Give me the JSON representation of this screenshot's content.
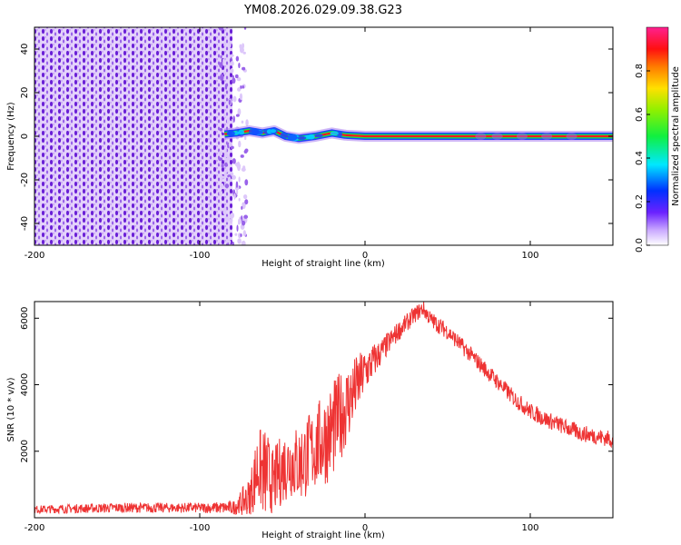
{
  "title": "YM08.2026.029.09.38.G23",
  "chart_data": [
    {
      "type": "heatmap",
      "xlabel": "Height of straight line (km)",
      "ylabel": "Frequency (Hz)",
      "xlim": [
        -200,
        150
      ],
      "ylim": [
        -50,
        50
      ],
      "xticks": [
        -200,
        -100,
        0,
        100
      ],
      "yticks": [
        -40,
        -20,
        0,
        20,
        40
      ],
      "colorbar": {
        "label": "Normalized spectral amplitude",
        "range": [
          0,
          1
        ],
        "ticks": [
          0.0,
          0.2,
          0.4,
          0.6,
          0.8
        ]
      },
      "regions": [
        {
          "description": "broadband noise",
          "x_range": [
            -200,
            -75
          ],
          "freq_range": [
            -50,
            50
          ],
          "amplitude": 0.05
        },
        {
          "description": "signal line",
          "x_range": [
            -85,
            150
          ],
          "freq": 0,
          "amplitude": 1.0
        }
      ],
      "line_track": [
        {
          "x": -85,
          "freq": 1.0
        },
        {
          "x": -78,
          "freq": 1.5
        },
        {
          "x": -70,
          "freq": 2.5
        },
        {
          "x": -62,
          "freq": 1.5
        },
        {
          "x": -55,
          "freq": 2.5
        },
        {
          "x": -48,
          "freq": 0.0
        },
        {
          "x": -40,
          "freq": -1.0
        },
        {
          "x": -30,
          "freq": 0.0
        },
        {
          "x": -20,
          "freq": 1.5
        },
        {
          "x": -12,
          "freq": 0.5
        },
        {
          "x": 0,
          "freq": 0.0
        },
        {
          "x": 150,
          "freq": 0.0
        }
      ]
    },
    {
      "type": "line",
      "xlabel": "Height of straight line (km)",
      "ylabel": "SNR (10 * v/v)",
      "xlim": [
        -200,
        150
      ],
      "ylim": [
        0,
        6500
      ],
      "xticks": [
        -200,
        -100,
        0,
        100
      ],
      "yticks": [
        2000,
        4000,
        6000
      ],
      "series": [
        {
          "name": "SNR",
          "color": "#ee3333",
          "x": [
            -200,
            -150,
            -100,
            -80,
            -70,
            -65,
            -60,
            -55,
            -50,
            -45,
            -40,
            -30,
            -20,
            -10,
            0,
            10,
            20,
            30,
            35,
            40,
            50,
            60,
            70,
            80,
            90,
            100,
            110,
            120,
            130,
            140,
            150
          ],
          "y": [
            250,
            300,
            300,
            300,
            600,
            1500,
            1300,
            1100,
            1500,
            1700,
            1600,
            2100,
            2600,
            3500,
            4400,
            5000,
            5600,
            6100,
            6300,
            5950,
            5600,
            5100,
            4600,
            4100,
            3600,
            3200,
            2950,
            2750,
            2550,
            2450,
            2350
          ],
          "noise_amplitude": [
            120,
            150,
            150,
            200,
            600,
            1200,
            1400,
            1000,
            1100,
            1100,
            1200,
            1300,
            1500,
            1200,
            700,
            400,
            300,
            250,
            250,
            250,
            250,
            250,
            250,
            250,
            250,
            250,
            250,
            250,
            250,
            250,
            250
          ]
        }
      ]
    }
  ],
  "colors": {
    "line": "#ee3333",
    "noise_purple": "#6a1fd6"
  }
}
